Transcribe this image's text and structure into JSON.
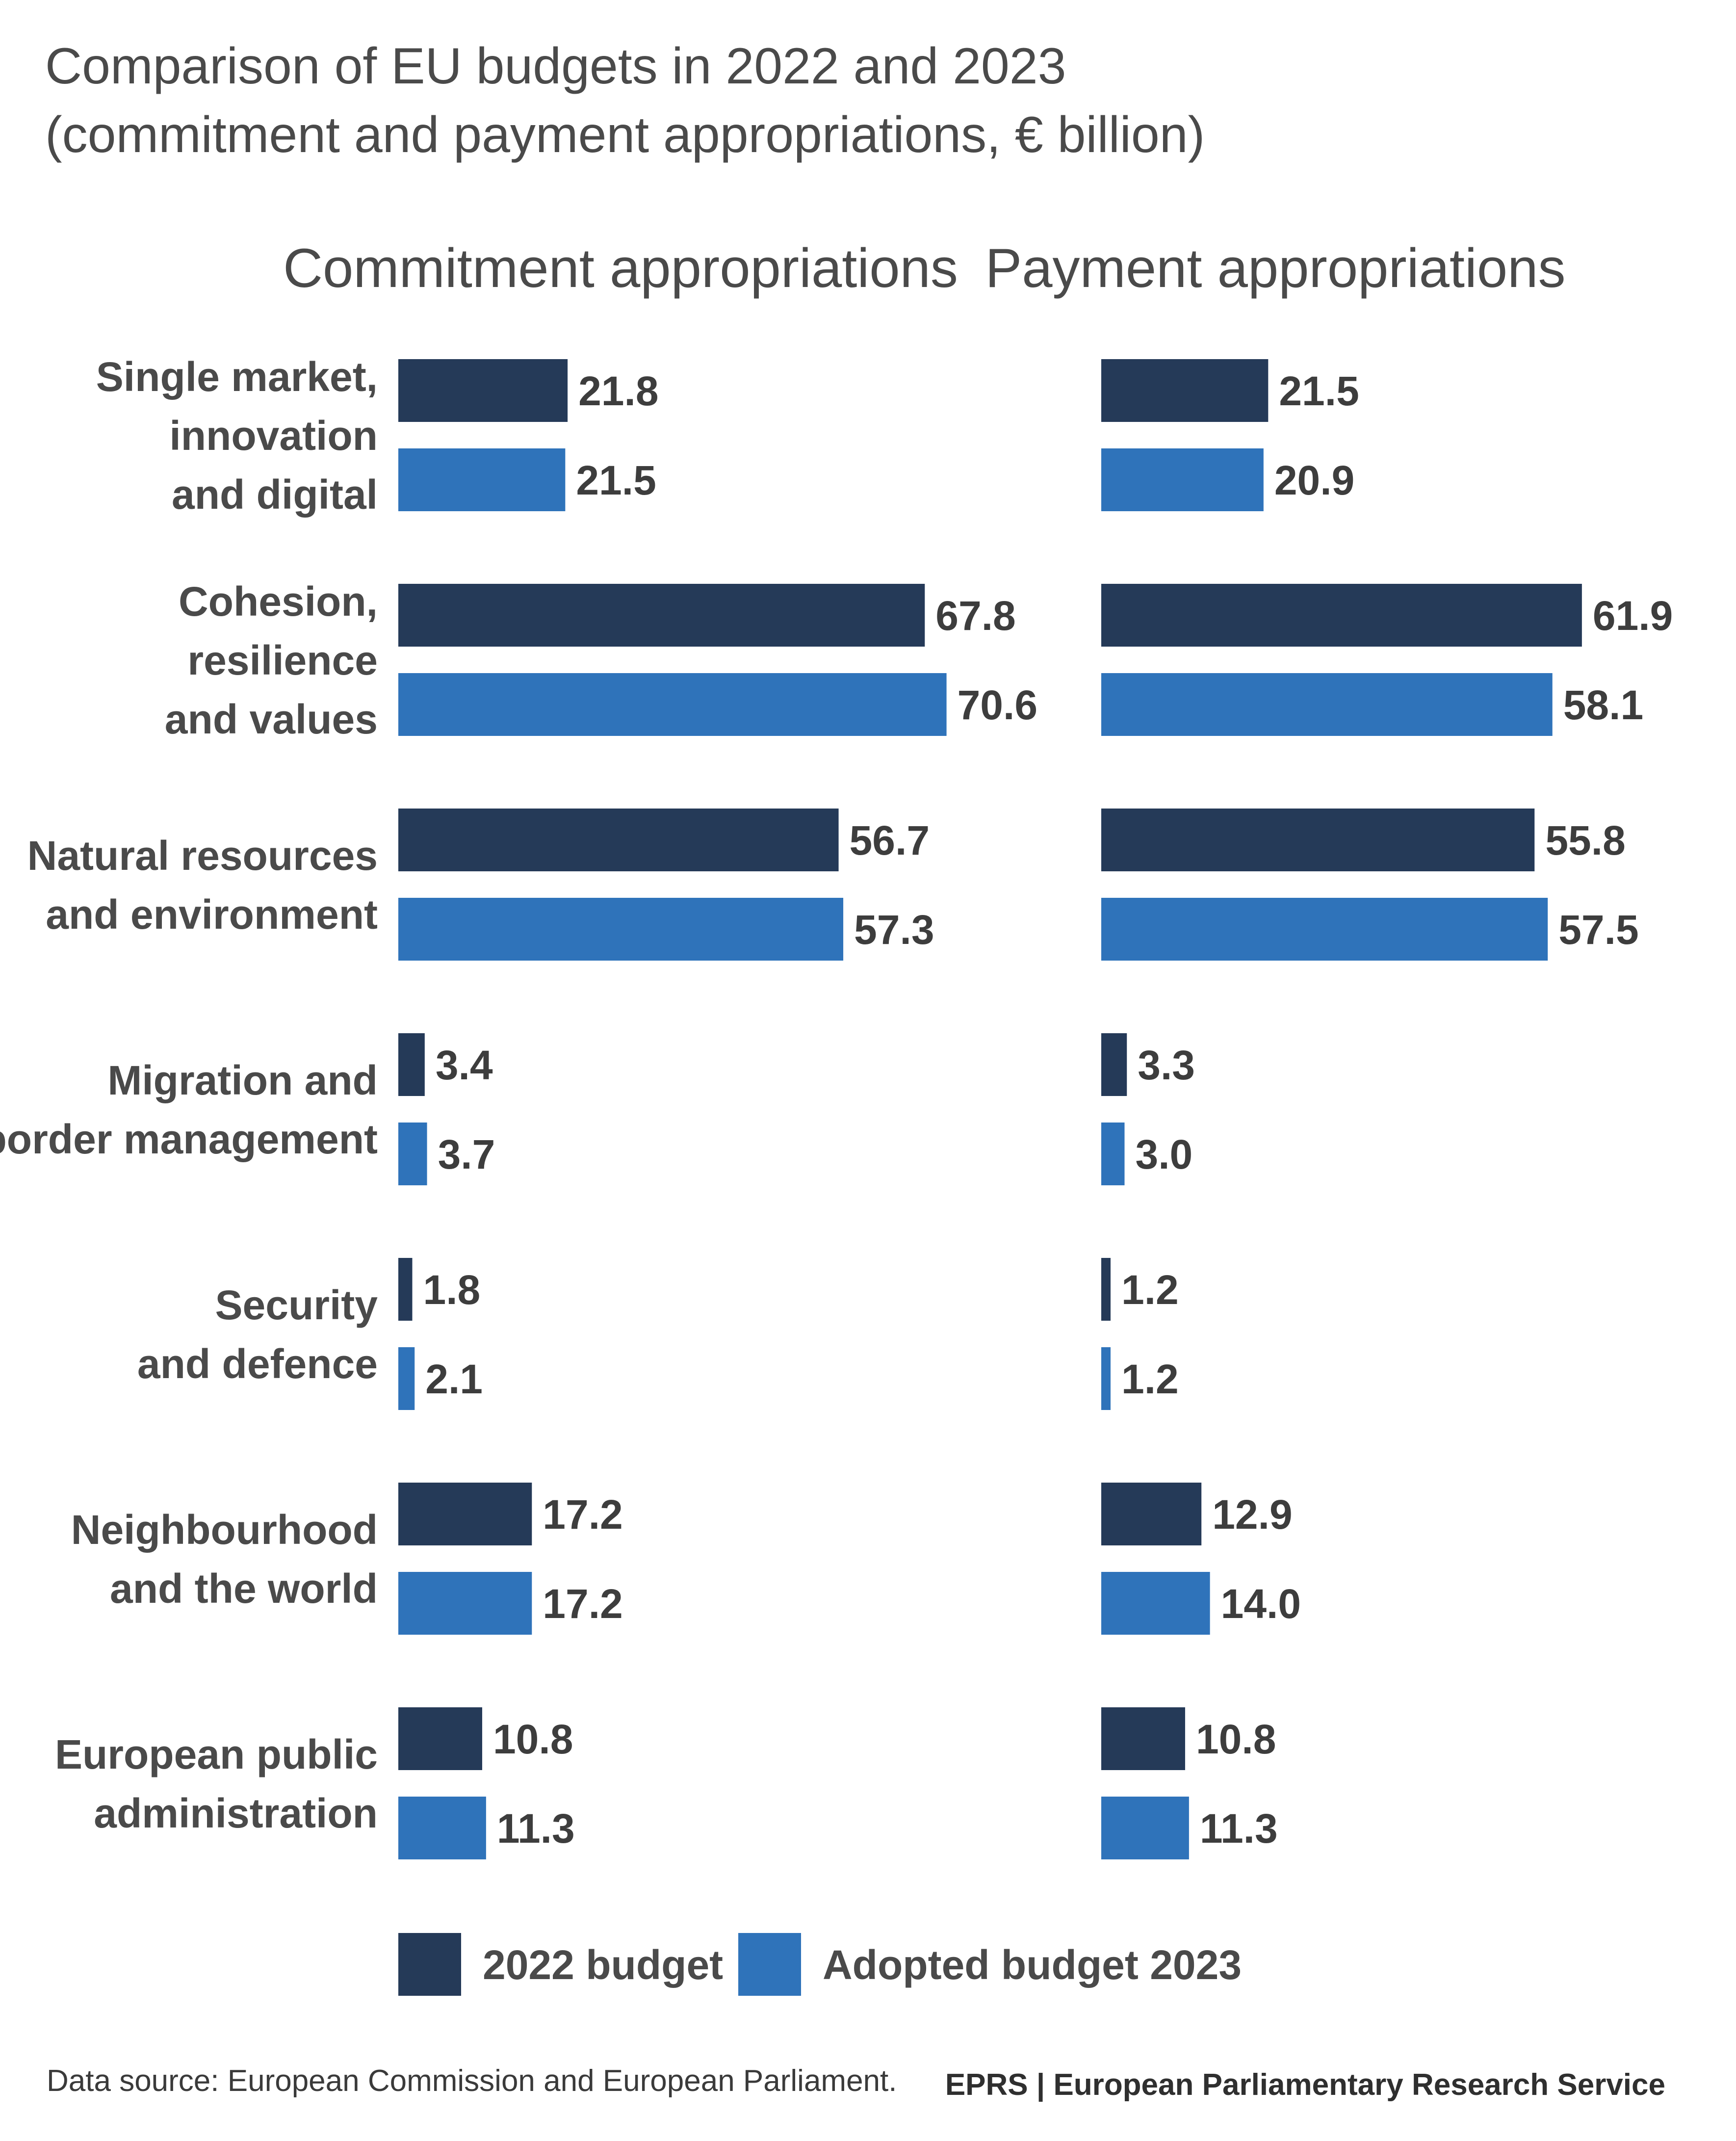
{
  "title_line1": "Comparison of EU budgets in 2022 and 2023",
  "title_line2": "(commitment and payment appropriations, € billion)",
  "source": "Data source: European Commission and European Parliament.",
  "branding": "EPRS | European Parliamentary Research Service",
  "colors": {
    "budget_2022": "#253a58",
    "budget_2023": "#2f73ba"
  },
  "chart_data": {
    "type": "bar",
    "orientation": "horizontal",
    "unit": "€ billion",
    "categories": [
      [
        "Single market,",
        "innovation",
        "and digital"
      ],
      [
        "Cohesion,",
        "resilience",
        "and values"
      ],
      [
        "Natural resources",
        "and environment"
      ],
      [
        "Migration and",
        "border management"
      ],
      [
        "Security",
        "and defence"
      ],
      [
        "Neighbourhood",
        "and the world"
      ],
      [
        "European public",
        "administration"
      ]
    ],
    "panels": [
      {
        "title": "Commitment appropriations",
        "series": [
          {
            "name": "2022 budget",
            "values": [
              21.8,
              67.8,
              56.7,
              3.4,
              1.8,
              17.2,
              10.8
            ]
          },
          {
            "name": "Adopted budget 2023",
            "values": [
              21.5,
              70.6,
              57.3,
              3.7,
              2.1,
              17.2,
              11.3
            ]
          }
        ]
      },
      {
        "title": "Payment appropriations",
        "series": [
          {
            "name": "2022 budget",
            "values": [
              21.5,
              61.9,
              55.8,
              3.3,
              1.2,
              12.9,
              10.8
            ]
          },
          {
            "name": "Adopted budget 2023",
            "values": [
              20.9,
              58.1,
              57.5,
              3.0,
              1.2,
              14.0,
              11.3
            ]
          }
        ]
      }
    ],
    "legend": [
      "2022 budget",
      "Adopted budget 2023"
    ],
    "legend_position": "bottom",
    "grid": false
  }
}
